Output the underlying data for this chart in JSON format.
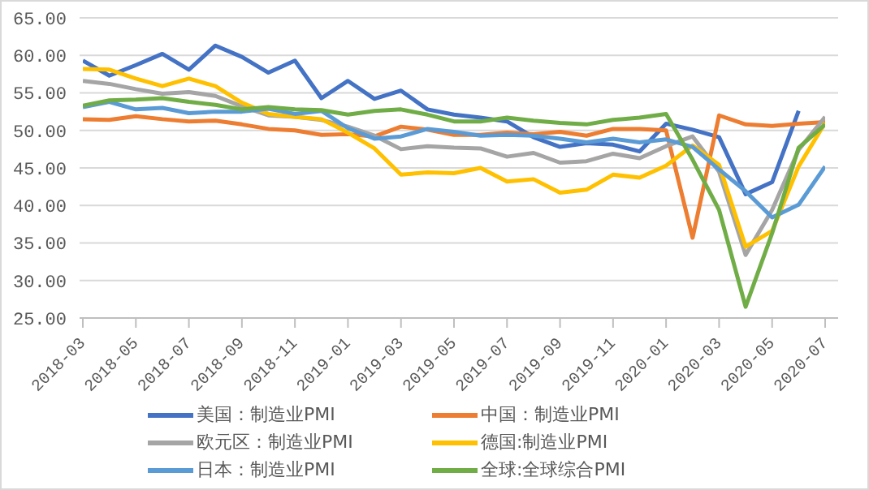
{
  "chart_data": {
    "type": "line",
    "categories": [
      "2018-03",
      null,
      "2018-05",
      null,
      "2018-07",
      null,
      "2018-09",
      null,
      "2018-11",
      null,
      "2019-01",
      null,
      "2019-03",
      null,
      "2019-05",
      null,
      "2019-07",
      null,
      "2019-09",
      null,
      "2019-11",
      null,
      "2020-01",
      null,
      "2020-03",
      null,
      "2020-05",
      null,
      "2020-07"
    ],
    "series": [
      {
        "name": "美国：制造业PMI",
        "color": "#4472c4",
        "values": [
          59.3,
          57.3,
          58.7,
          60.2,
          58.1,
          61.3,
          59.8,
          57.7,
          59.3,
          54.3,
          56.6,
          54.2,
          55.3,
          52.8,
          52.1,
          51.7,
          51.2,
          49.1,
          47.8,
          48.3,
          48.1,
          47.2,
          50.9,
          50.1,
          49.1,
          41.5,
          43.1,
          52.6,
          null
        ]
      },
      {
        "name": "中国：制造业PMI",
        "color": "#ed7d31",
        "values": [
          51.5,
          51.4,
          51.9,
          51.5,
          51.2,
          51.3,
          50.8,
          50.2,
          50.0,
          49.4,
          49.5,
          49.2,
          50.5,
          50.1,
          49.4,
          49.4,
          49.7,
          49.5,
          49.8,
          49.3,
          50.2,
          50.2,
          50.0,
          35.7,
          52.0,
          50.8,
          50.6,
          50.9,
          51.1
        ]
      },
      {
        "name": "欧元区：制造业PMI",
        "color": "#a5a5a5",
        "values": [
          56.6,
          56.2,
          55.5,
          54.9,
          55.1,
          54.6,
          53.2,
          52.0,
          51.8,
          51.4,
          50.5,
          49.3,
          47.5,
          47.9,
          47.7,
          47.6,
          46.5,
          47.0,
          45.7,
          45.9,
          46.9,
          46.3,
          47.9,
          49.2,
          44.5,
          33.4,
          39.4,
          47.4,
          51.8
        ]
      },
      {
        "name": "德国:制造业PMI",
        "color": "#ffc000",
        "values": [
          58.2,
          58.1,
          56.9,
          55.9,
          56.9,
          55.9,
          53.7,
          52.2,
          51.8,
          51.5,
          49.7,
          47.6,
          44.1,
          44.4,
          44.3,
          45.0,
          43.2,
          43.5,
          41.7,
          42.1,
          44.1,
          43.7,
          45.3,
          48.0,
          45.4,
          34.5,
          36.6,
          45.2,
          51.0
        ]
      },
      {
        "name": "日本：制造业PMI",
        "color": "#5b9bd5",
        "values": [
          53.1,
          53.8,
          52.8,
          53.0,
          52.3,
          52.5,
          52.5,
          52.9,
          52.2,
          52.6,
          50.3,
          48.9,
          49.2,
          50.2,
          49.8,
          49.3,
          49.4,
          49.3,
          48.9,
          48.4,
          48.9,
          48.4,
          48.8,
          47.8,
          44.8,
          41.9,
          38.4,
          40.1,
          45.2
        ]
      },
      {
        "name": "全球:全球综合PMI",
        "color": "#70ad47",
        "values": [
          53.3,
          54.0,
          54.1,
          54.3,
          53.8,
          53.4,
          52.8,
          53.1,
          52.8,
          52.7,
          52.1,
          52.6,
          52.8,
          52.1,
          51.2,
          51.2,
          51.7,
          51.3,
          51.0,
          50.8,
          51.4,
          51.7,
          52.2,
          46.1,
          39.4,
          26.5,
          36.3,
          47.7,
          50.8
        ]
      }
    ],
    "ylim": [
      25,
      65
    ],
    "yticks": [
      {
        "value": 25,
        "label": "25.00"
      },
      {
        "value": 30,
        "label": "30.00"
      },
      {
        "value": 35,
        "label": "35.00"
      },
      {
        "value": 40,
        "label": "40.00"
      },
      {
        "value": 45,
        "label": "45.00"
      },
      {
        "value": 50,
        "label": "50.00"
      },
      {
        "value": 55,
        "label": "55.00"
      },
      {
        "value": 60,
        "label": "60.00"
      },
      {
        "value": 65,
        "label": "65.00"
      }
    ],
    "grid": "y",
    "legend": "bottom",
    "marker": "none",
    "line_style": "solid"
  }
}
